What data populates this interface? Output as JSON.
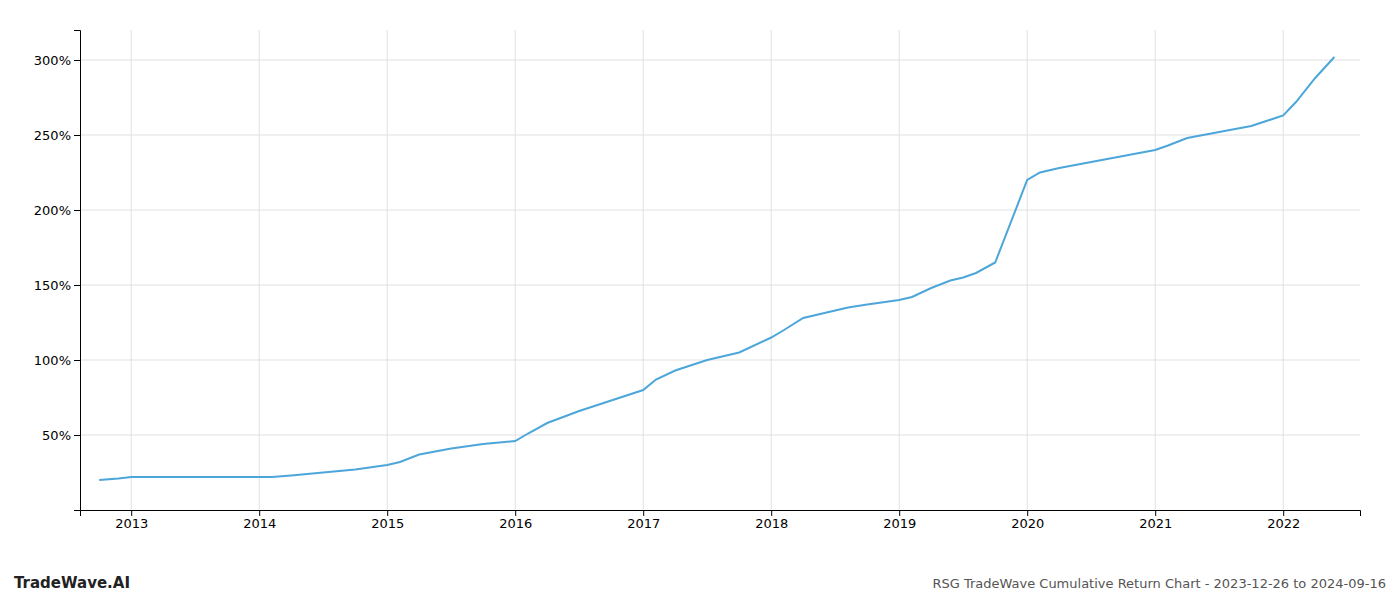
{
  "chart_data": {
    "type": "line",
    "title": "RSG TradeWave Cumulative Return Chart - 2023-12-26 to 2024-09-16",
    "annotations": [
      "TradeWave.AI"
    ],
    "x": [
      2012.75,
      2012.9,
      2013.0,
      2013.1,
      2013.25,
      2013.5,
      2013.75,
      2014.0,
      2014.1,
      2014.25,
      2014.5,
      2014.75,
      2015.0,
      2015.1,
      2015.25,
      2015.5,
      2015.75,
      2016.0,
      2016.1,
      2016.25,
      2016.5,
      2016.75,
      2017.0,
      2017.1,
      2017.25,
      2017.5,
      2017.75,
      2018.0,
      2018.1,
      2018.25,
      2018.5,
      2018.6,
      2018.75,
      2019.0,
      2019.1,
      2019.25,
      2019.4,
      2019.5,
      2019.6,
      2019.75,
      2020.0,
      2020.1,
      2020.25,
      2020.5,
      2020.75,
      2021.0,
      2021.1,
      2021.25,
      2021.5,
      2021.75,
      2022.0,
      2022.1,
      2022.25,
      2022.4
    ],
    "values": [
      20,
      21,
      22,
      22,
      22,
      22,
      22,
      22,
      22,
      23,
      25,
      27,
      30,
      32,
      37,
      41,
      44,
      46,
      51,
      58,
      66,
      73,
      80,
      87,
      93,
      100,
      105,
      115,
      120,
      128,
      133,
      135,
      137,
      140,
      142,
      148,
      153,
      155,
      158,
      165,
      220,
      225,
      228,
      232,
      236,
      240,
      243,
      248,
      252,
      256,
      263,
      272,
      288,
      302
    ],
    "color": "#4da6d9",
    "xlim": [
      2012.6,
      2022.6
    ],
    "xticks": [
      2013,
      2014,
      2015,
      2016,
      2017,
      2018,
      2019,
      2020,
      2021,
      2022
    ],
    "ylim": [
      0,
      320
    ],
    "yticks": [
      {
        "value": 50,
        "label": "50%"
      },
      {
        "value": 100,
        "label": "100%"
      },
      {
        "value": 150,
        "label": "150%"
      },
      {
        "value": 200,
        "label": "200%"
      },
      {
        "value": 250,
        "label": "250%"
      },
      {
        "value": 300,
        "label": "300%"
      }
    ],
    "grid": true
  }
}
